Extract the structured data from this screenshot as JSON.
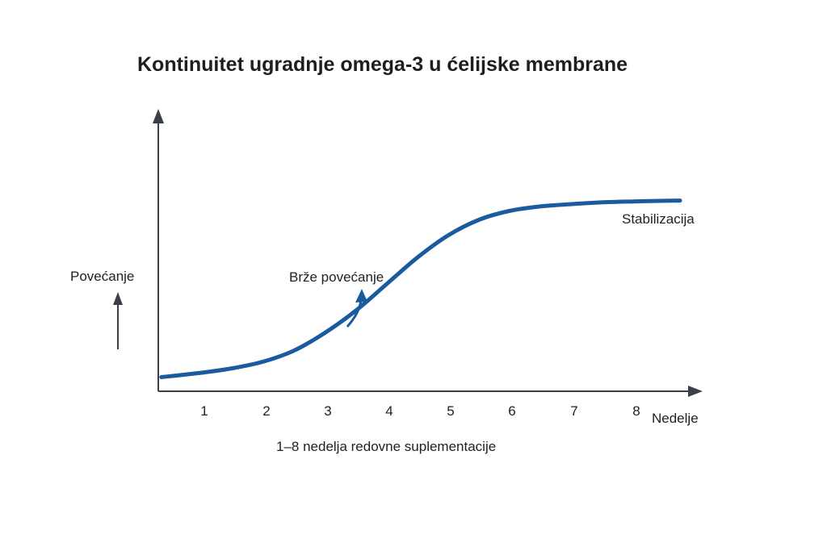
{
  "chart_data": {
    "type": "line",
    "title": "Kontinuitet ugradnje omega-3 u ćelijske membrane",
    "subtitle": "1–8 nedelja redovne suplementacije",
    "xlabel": "Nedelje",
    "ylabel": "Povećanje",
    "x_ticks": [
      "1",
      "2",
      "3",
      "4",
      "5",
      "6",
      "7",
      "8"
    ],
    "xlim": [
      0.3,
      8.8
    ],
    "ylim": [
      0,
      1
    ],
    "grid": false,
    "series": [
      {
        "x": [
          0.35,
          1.0,
          1.5,
          2.0,
          2.5,
          3.0,
          3.5,
          4.0,
          4.5,
          5.0,
          5.5,
          6.0,
          6.5,
          7.0,
          7.5,
          8.0,
          8.5,
          8.75
        ],
        "y": [
          0.02,
          0.04,
          0.06,
          0.09,
          0.14,
          0.22,
          0.32,
          0.44,
          0.56,
          0.66,
          0.73,
          0.77,
          0.79,
          0.8,
          0.808,
          0.812,
          0.815,
          0.816
        ]
      }
    ],
    "annotations": [
      {
        "text": "Brže povećanje",
        "x": 3.55,
        "y": 0.33
      },
      {
        "text": "Stabilizacija",
        "x": 8.1,
        "y": 0.82
      }
    ],
    "colors": {
      "line": "#1a5a9e",
      "axis": "#3a3f48",
      "text": "#222222"
    }
  }
}
